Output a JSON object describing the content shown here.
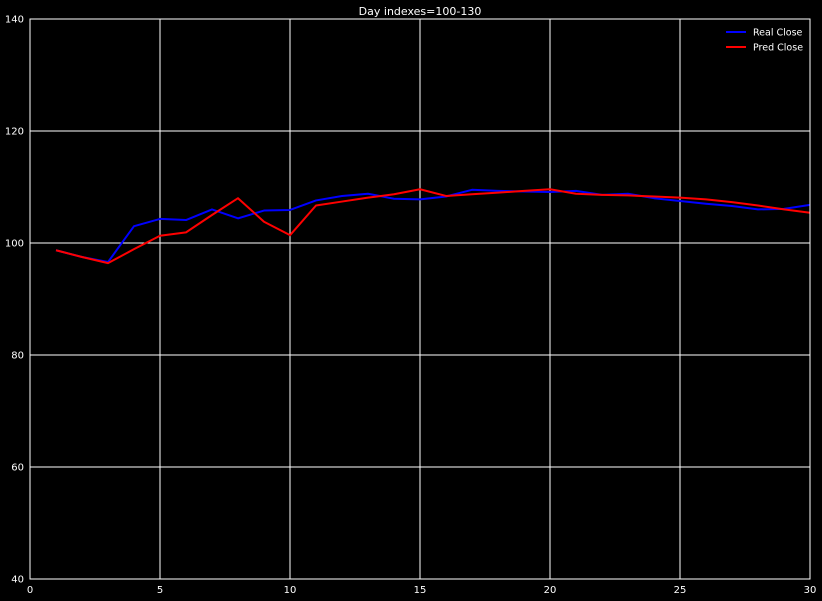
{
  "chart_data": {
    "type": "line",
    "title": "Day indexes=100-130",
    "xlabel": "",
    "ylabel": "",
    "xlim": [
      0,
      30
    ],
    "ylim": [
      40,
      140
    ],
    "xticks": [
      0,
      5,
      10,
      15,
      20,
      25,
      30
    ],
    "yticks": [
      40,
      60,
      80,
      100,
      120,
      140
    ],
    "grid": true,
    "legend_position": "top-right",
    "background": "#000000",
    "grid_color": "#ffffff",
    "x": [
      1,
      2,
      3,
      4,
      5,
      6,
      7,
      8,
      9,
      10,
      11,
      12,
      13,
      14,
      15,
      16,
      17,
      18,
      19,
      20,
      21,
      22,
      23,
      24,
      25,
      26,
      27,
      28,
      29,
      30
    ],
    "series": [
      {
        "name": "Real Close",
        "color": "#0000ff",
        "values": [
          98.7,
          97.5,
          96.6,
          103.0,
          104.3,
          104.1,
          106.0,
          104.4,
          105.8,
          105.9,
          107.6,
          108.4,
          108.8,
          107.9,
          107.8,
          108.3,
          109.5,
          109.3,
          109.2,
          109.1,
          109.3,
          108.6,
          108.8,
          108.0,
          107.5,
          107.0,
          106.6,
          106.0,
          106.1,
          106.8
        ]
      },
      {
        "name": "Pred Close",
        "color": "#ff0000",
        "values": [
          98.7,
          97.5,
          96.4,
          98.9,
          101.3,
          101.9,
          105.0,
          108.0,
          103.8,
          101.4,
          106.7,
          107.4,
          108.1,
          108.7,
          109.6,
          108.4,
          108.7,
          109.0,
          109.3,
          109.6,
          108.8,
          108.6,
          108.5,
          108.3,
          108.1,
          107.8,
          107.3,
          106.7,
          106.0,
          105.4
        ]
      }
    ]
  }
}
